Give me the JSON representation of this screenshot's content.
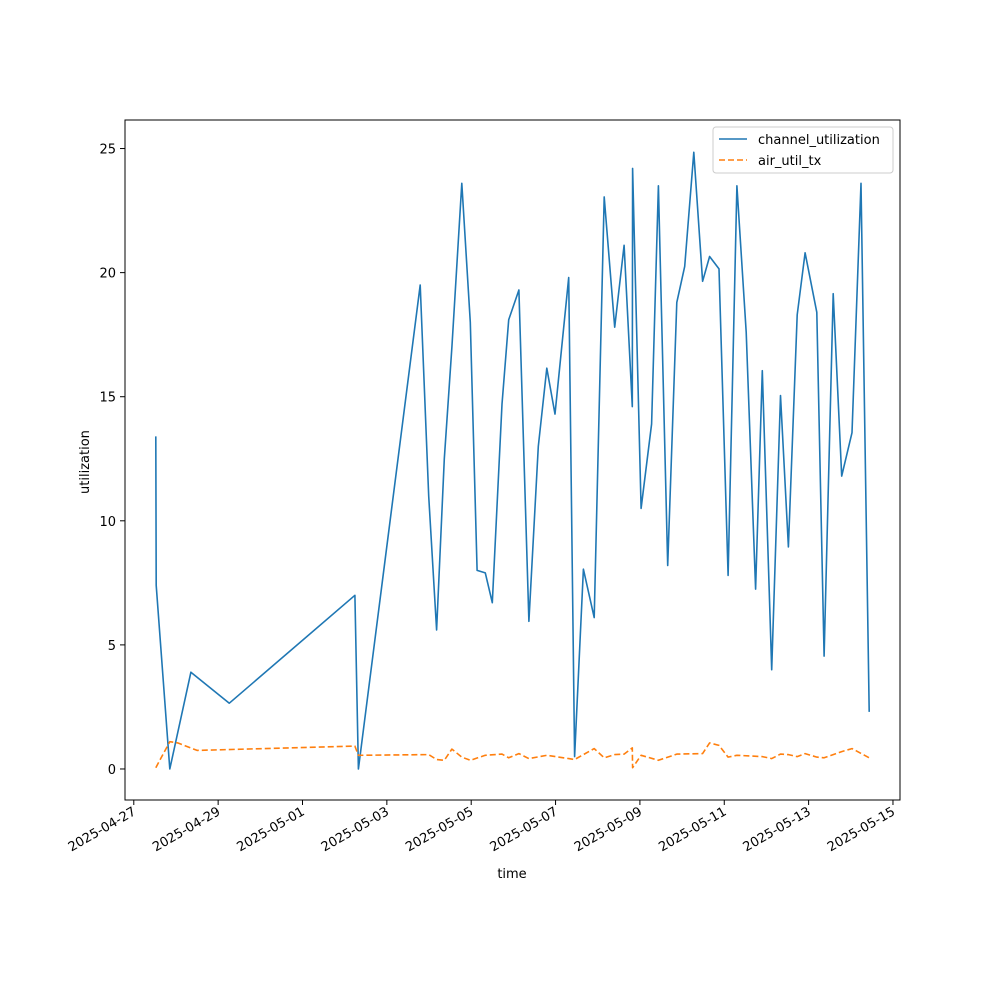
{
  "chart_data": {
    "type": "line",
    "xlabel": "time",
    "ylabel": "utilization",
    "x_type": "datetime",
    "xlim": [
      "2025-04-26T19:00",
      "2025-05-15T04:00"
    ],
    "ylim": [
      -1.25,
      26.15
    ],
    "x_ticks": [
      "2025-04-27",
      "2025-04-29",
      "2025-05-01",
      "2025-05-03",
      "2025-05-05",
      "2025-05-07",
      "2025-05-09",
      "2025-05-11",
      "2025-05-13",
      "2025-05-15"
    ],
    "y_ticks": [
      0,
      5,
      10,
      15,
      20,
      25
    ],
    "legend_position": "top-right",
    "grid": false,
    "series": [
      {
        "name": "channel_utilization",
        "color": "#1f77b4",
        "style": "solid",
        "points": [
          [
            "2025-04-27T12:30",
            13.4
          ],
          [
            "2025-04-27T12:45",
            7.4
          ],
          [
            "2025-04-27T20:30",
            0.0
          ],
          [
            "2025-04-28T08:30",
            3.9
          ],
          [
            "2025-04-29T06:20",
            2.65
          ],
          [
            "2025-05-02T05:50",
            7.0
          ],
          [
            "2025-05-02T07:50",
            0.0
          ],
          [
            "2025-05-03T19:00",
            19.5
          ],
          [
            "2025-05-03T23:50",
            11.0
          ],
          [
            "2025-05-04T04:20",
            5.6
          ],
          [
            "2025-05-04T08:40",
            12.5
          ],
          [
            "2025-05-04T13:00",
            17.0
          ],
          [
            "2025-05-04T18:40",
            23.6
          ],
          [
            "2025-05-04T23:30",
            18.0
          ],
          [
            "2025-05-05T03:20",
            8.0
          ],
          [
            "2025-05-05T08:00",
            7.9
          ],
          [
            "2025-05-05T12:00",
            6.7
          ],
          [
            "2025-05-05T17:30",
            14.7
          ],
          [
            "2025-05-05T21:20",
            18.1
          ],
          [
            "2025-05-06T03:10",
            19.3
          ],
          [
            "2025-05-06T08:50",
            5.95
          ],
          [
            "2025-05-06T14:10",
            13.0
          ],
          [
            "2025-05-06T19:00",
            16.15
          ],
          [
            "2025-05-06T23:40",
            14.3
          ],
          [
            "2025-05-07T07:30",
            19.8
          ],
          [
            "2025-05-07T10:50",
            0.5
          ],
          [
            "2025-05-07T15:50",
            8.05
          ],
          [
            "2025-05-07T22:00",
            6.1
          ],
          [
            "2025-05-08T03:40",
            23.05
          ],
          [
            "2025-05-08T09:40",
            17.8
          ],
          [
            "2025-05-08T15:00",
            21.1
          ],
          [
            "2025-05-08T19:40",
            14.6
          ],
          [
            "2025-05-08T19:50",
            24.2
          ],
          [
            "2025-05-09T00:40",
            10.5
          ],
          [
            "2025-05-09T06:40",
            13.9
          ],
          [
            "2025-05-09T10:30",
            23.5
          ],
          [
            "2025-05-09T15:50",
            8.2
          ],
          [
            "2025-05-09T21:00",
            18.8
          ],
          [
            "2025-05-10T01:30",
            20.25
          ],
          [
            "2025-05-10T06:40",
            24.85
          ],
          [
            "2025-05-10T11:40",
            19.65
          ],
          [
            "2025-05-10T15:40",
            20.65
          ],
          [
            "2025-05-10T21:00",
            20.15
          ],
          [
            "2025-05-11T02:10",
            7.8
          ],
          [
            "2025-05-11T07:10",
            23.5
          ],
          [
            "2025-05-11T12:30",
            17.6
          ],
          [
            "2025-05-11T17:50",
            7.25
          ],
          [
            "2025-05-11T21:40",
            16.05
          ],
          [
            "2025-05-12T03:00",
            4.0
          ],
          [
            "2025-05-12T08:00",
            15.05
          ],
          [
            "2025-05-12T12:30",
            8.95
          ],
          [
            "2025-05-12T17:30",
            18.3
          ],
          [
            "2025-05-12T22:00",
            20.8
          ],
          [
            "2025-05-13T04:40",
            18.4
          ],
          [
            "2025-05-13T08:50",
            4.55
          ],
          [
            "2025-05-13T14:00",
            19.15
          ],
          [
            "2025-05-13T18:50",
            11.8
          ],
          [
            "2025-05-14T00:40",
            13.55
          ],
          [
            "2025-05-14T05:50",
            23.6
          ],
          [
            "2025-05-14T10:30",
            2.3
          ]
        ]
      },
      {
        "name": "air_util_tx",
        "color": "#ff7f0e",
        "style": "dashed",
        "points": [
          [
            "2025-04-27T12:30",
            0.05
          ],
          [
            "2025-04-27T20:30",
            1.1
          ],
          [
            "2025-04-28T01:00",
            1.05
          ],
          [
            "2025-04-28T12:00",
            0.75
          ],
          [
            "2025-05-02T05:50",
            0.92
          ],
          [
            "2025-05-02T07:50",
            0.55
          ],
          [
            "2025-05-03T23:50",
            0.58
          ],
          [
            "2025-05-04T04:20",
            0.38
          ],
          [
            "2025-05-04T08:40",
            0.35
          ],
          [
            "2025-05-04T13:00",
            0.8
          ],
          [
            "2025-05-04T18:40",
            0.48
          ],
          [
            "2025-05-04T23:30",
            0.35
          ],
          [
            "2025-05-05T08:00",
            0.55
          ],
          [
            "2025-05-05T17:30",
            0.6
          ],
          [
            "2025-05-05T21:20",
            0.45
          ],
          [
            "2025-05-06T03:10",
            0.62
          ],
          [
            "2025-05-06T08:50",
            0.42
          ],
          [
            "2025-05-06T19:00",
            0.55
          ],
          [
            "2025-05-07T07:30",
            0.42
          ],
          [
            "2025-05-07T10:50",
            0.38
          ],
          [
            "2025-05-07T22:00",
            0.82
          ],
          [
            "2025-05-08T03:40",
            0.45
          ],
          [
            "2025-05-08T09:40",
            0.58
          ],
          [
            "2025-05-08T15:00",
            0.6
          ],
          [
            "2025-05-08T19:40",
            0.85
          ],
          [
            "2025-05-08T19:50",
            0.05
          ],
          [
            "2025-05-09T00:40",
            0.55
          ],
          [
            "2025-05-09T10:30",
            0.35
          ],
          [
            "2025-05-09T21:00",
            0.6
          ],
          [
            "2025-05-10T11:40",
            0.62
          ],
          [
            "2025-05-10T15:40",
            1.05
          ],
          [
            "2025-05-10T21:00",
            0.95
          ],
          [
            "2025-05-11T02:10",
            0.48
          ],
          [
            "2025-05-11T07:10",
            0.55
          ],
          [
            "2025-05-11T21:40",
            0.5
          ],
          [
            "2025-05-12T03:00",
            0.42
          ],
          [
            "2025-05-12T08:00",
            0.6
          ],
          [
            "2025-05-12T12:30",
            0.58
          ],
          [
            "2025-05-12T17:30",
            0.5
          ],
          [
            "2025-05-12T22:00",
            0.62
          ],
          [
            "2025-05-13T04:40",
            0.48
          ],
          [
            "2025-05-13T08:50",
            0.45
          ],
          [
            "2025-05-13T18:50",
            0.7
          ],
          [
            "2025-05-14T00:40",
            0.82
          ],
          [
            "2025-05-14T10:30",
            0.45
          ]
        ]
      }
    ]
  }
}
